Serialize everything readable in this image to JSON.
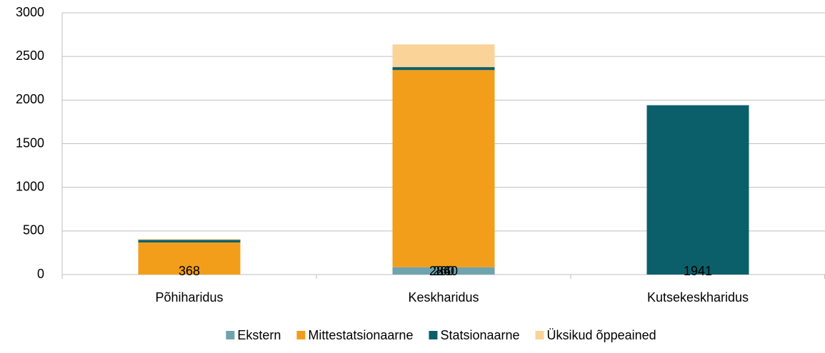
{
  "chart_data": {
    "type": "bar",
    "stacked": true,
    "categories": [
      "Põhiharidus",
      "Keskharidus",
      "Kutsekeskharidus"
    ],
    "series": [
      {
        "name": "Ekstern",
        "color": "#6fa3ad",
        "values": [
          0,
          84,
          0
        ],
        "value_labels": [
          null,
          "84",
          null
        ]
      },
      {
        "name": "Mittestatsionaarne",
        "color": "#f29e1b",
        "values": [
          368,
          2260,
          0
        ],
        "value_labels": [
          "368",
          "2260",
          null
        ]
      },
      {
        "name": "Statsionaarne",
        "color": "#0b5f6a",
        "values": [
          30,
          34,
          1941
        ],
        "value_labels": [
          null,
          null,
          "1941"
        ]
      },
      {
        "name": "Üksikud õppeained",
        "color": "#fad398",
        "values": [
          10,
          260,
          0
        ],
        "value_labels": [
          null,
          "260",
          null
        ]
      }
    ],
    "ylim": [
      0,
      3000
    ],
    "yticks": [
      0,
      500,
      1000,
      1500,
      2000,
      2500,
      3000
    ],
    "grid": true,
    "legend": "bottom"
  }
}
